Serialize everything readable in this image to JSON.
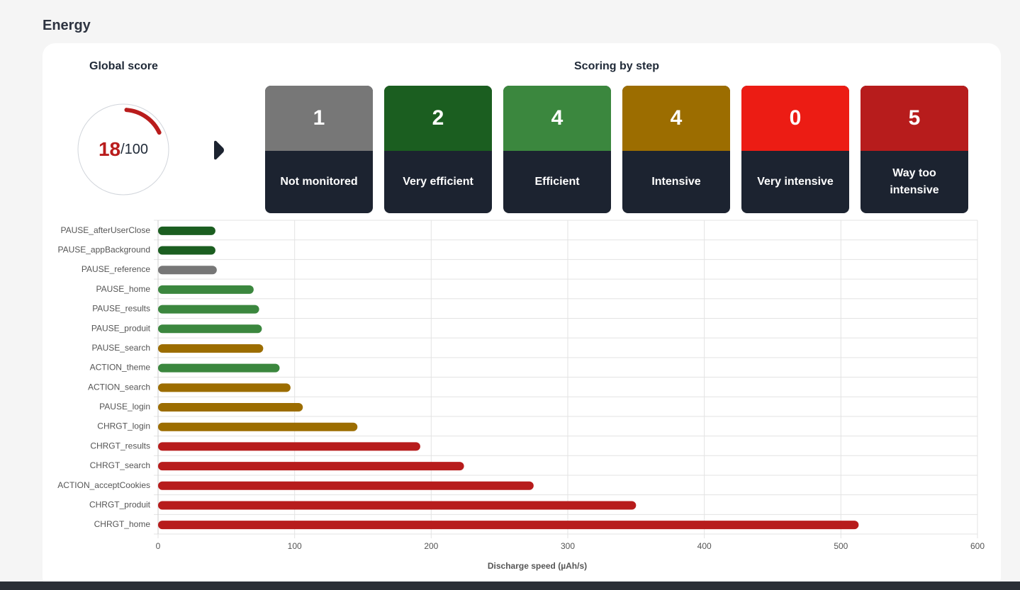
{
  "page": {
    "title": "Energy"
  },
  "global_score": {
    "title": "Global score",
    "score": "18",
    "max": "/100",
    "value": 18,
    "max_value": 100,
    "color": "#b91c1c"
  },
  "scoring": {
    "title": "Scoring by step",
    "tiles": [
      {
        "count": "1",
        "label": "Not monitored",
        "color": "#777777"
      },
      {
        "count": "2",
        "label": "Very efficient",
        "color": "#1b5e20"
      },
      {
        "count": "4",
        "label": "Efficient",
        "color": "#3b873e"
      },
      {
        "count": "4",
        "label": "Intensive",
        "color": "#9c6d00"
      },
      {
        "count": "0",
        "label": "Very intensive",
        "color": "#ec1c14"
      },
      {
        "count": "5",
        "label": "Way too intensive",
        "color": "#b71c1c"
      }
    ]
  },
  "chart_data": {
    "type": "bar",
    "orientation": "horizontal",
    "categories": [
      "PAUSE_afterUserClose",
      "PAUSE_appBackground",
      "PAUSE_reference",
      "PAUSE_home",
      "PAUSE_results",
      "PAUSE_produit",
      "PAUSE_search",
      "ACTION_theme",
      "ACTION_search",
      "PAUSE_login",
      "CHRGT_login",
      "CHRGT_results",
      "CHRGT_search",
      "ACTION_acceptCookies",
      "CHRGT_produit",
      "CHRGT_home"
    ],
    "values": [
      42,
      42,
      43,
      70,
      74,
      76,
      77,
      89,
      97,
      106,
      146,
      192,
      224,
      275,
      350,
      513
    ],
    "colors": [
      "#1b5e20",
      "#1b5e20",
      "#777777",
      "#3b873e",
      "#3b873e",
      "#3b873e",
      "#9c6d00",
      "#3b873e",
      "#9c6d00",
      "#9c6d00",
      "#9c6d00",
      "#b71c1c",
      "#b71c1c",
      "#b71c1c",
      "#b71c1c",
      "#b71c1c"
    ],
    "xlabel": "Discharge speed (µAh/s)",
    "ylabel": "",
    "xlim": [
      0,
      600
    ],
    "xticks": [
      "0",
      "100",
      "200",
      "300",
      "400",
      "500",
      "600"
    ],
    "grid": true
  }
}
